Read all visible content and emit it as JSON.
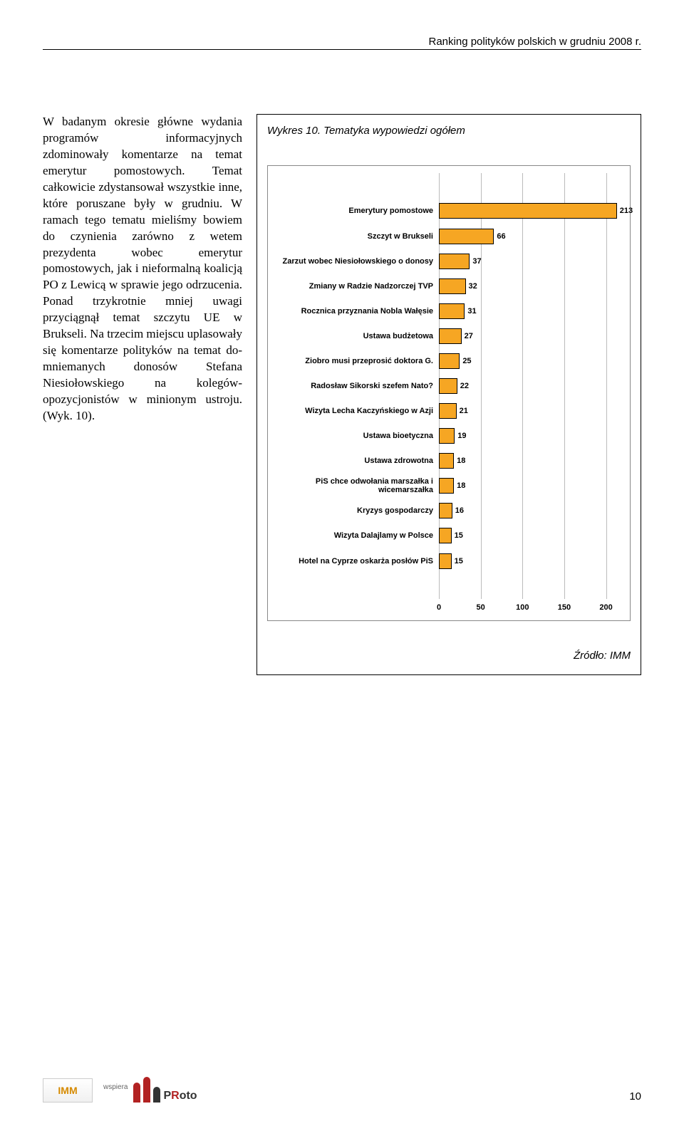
{
  "header": "Ranking polityków polskich w grudniu 2008 r.",
  "body_text": "W badanym okresie główne wydania programów informa­cyjnych zdominowały komen­tarze na temat emerytur pomo­stowych. Temat całkowicie zdystansował wszystkie inne, które poruszane były w grud­niu. W ramach tego tematu mieliśmy bowiem do czynienia zarówno z wetem prezydenta wobec emerytur pomostowych, jak i nieformalną koalicją PO z Lewicą w sprawie jego odrzu­cenia. Ponad trzykrotnie mniej uwagi przyciągnął temat szczy­tu UE w Brukseli. Na trzecim miejscu uplasowały się komen­tarze polityków na temat do­mniemanych donosów Stefana Niesiołowskiego na kolegów-opozycjonistów w minionym ustroju. (Wyk. 10).",
  "chart": {
    "title": "Wykres 10. Tematyka wypowiedzi ogółem",
    "xmax": 220,
    "xticks": [
      0,
      50,
      100,
      150,
      200
    ],
    "bar_color": "#f6a623",
    "bar_border": "#000000",
    "grid_color": "#bbbbbb",
    "items": [
      {
        "label": "Emerytury pomostowe",
        "value": 213
      },
      {
        "label": "Szczyt w Brukseli",
        "value": 66
      },
      {
        "label": "Zarzut wobec Niesiołowskiego o donosy",
        "value": 37
      },
      {
        "label": "Zmiany w Radzie Nadzorczej TVP",
        "value": 32
      },
      {
        "label": "Rocznica przyznania Nobla Wałęsie",
        "value": 31
      },
      {
        "label": "Ustawa budżetowa",
        "value": 27
      },
      {
        "label": "Ziobro musi przeprosić doktora G.",
        "value": 25
      },
      {
        "label": "Radosław Sikorski szefem Nato?",
        "value": 22
      },
      {
        "label": "Wizyta Lecha Kaczyńskiego w Azji",
        "value": 21
      },
      {
        "label": "Ustawa bioetyczna",
        "value": 19
      },
      {
        "label": "Ustawa zdrowotna",
        "value": 18
      },
      {
        "label": "PiS chce odwołania marszałka i wicemarszałka",
        "value": 18
      },
      {
        "label": "Kryzys gospodarczy",
        "value": 16
      },
      {
        "label": "Wizyta Dalajlamy w Polsce",
        "value": 15
      },
      {
        "label": "Hotel na Cyprze oskarża posłów PiS",
        "value": 15
      }
    ],
    "source": "Źródło: IMM"
  },
  "footer": {
    "page_number": "10",
    "imm_logo": "IMM",
    "wspiera": "wspiera",
    "proto": "PRoto"
  }
}
